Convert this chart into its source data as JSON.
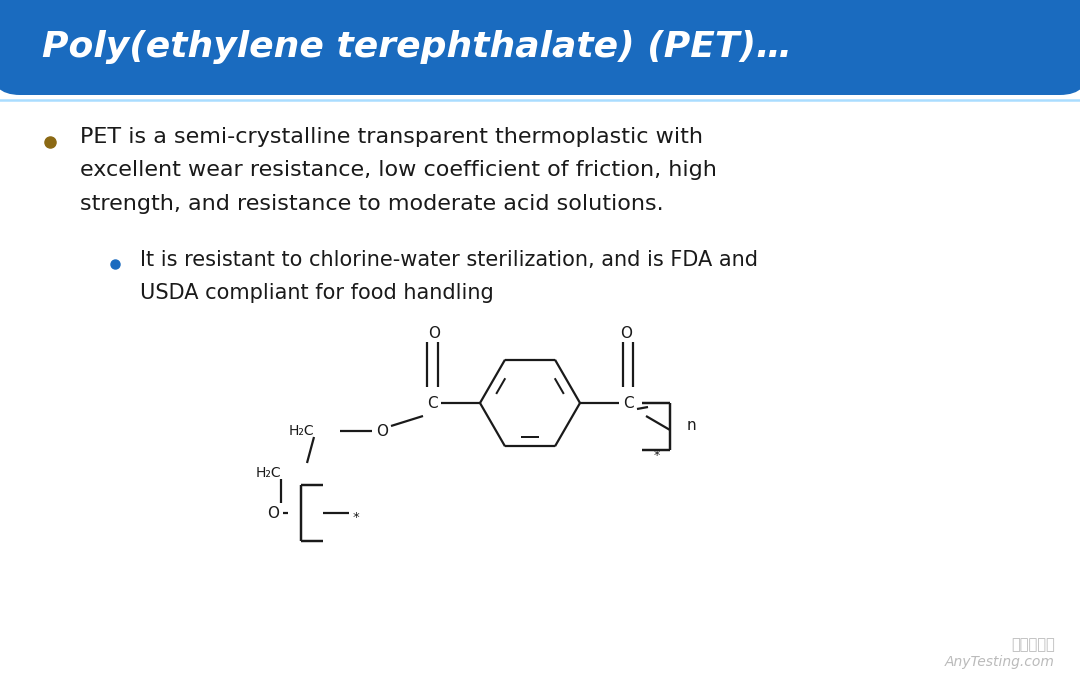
{
  "title": "Poly(ethylene terephthalate) (PET)…",
  "title_color": "#FFFFFF",
  "header_bg_color": "#1A6BBF",
  "slide_bg_color": "#FFFFFF",
  "bullet_color": "#1A1A1A",
  "bullet_dot_color": "#8B6914",
  "bullet_dot_color2": "#1A6BBF",
  "separator_color": "#AADDFF",
  "watermark_line1": "嘉峪检测网",
  "watermark_line2": "AnyTesting.com",
  "watermark_color": "#BBBBBB",
  "bond_color": "#1A1A1A"
}
